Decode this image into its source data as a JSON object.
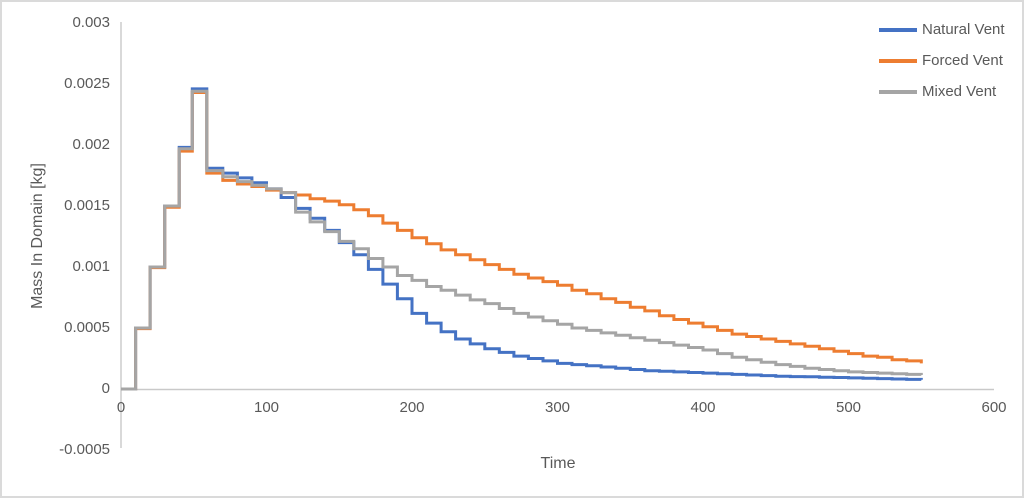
{
  "chart_data": {
    "type": "line",
    "line_style": "step-after",
    "title": "",
    "xlabel": "Time",
    "ylabel": "Mass In Domain [kg]",
    "xlim": [
      0,
      600
    ],
    "ylim": [
      -0.0005,
      0.003
    ],
    "grid": false,
    "legend_position": "top-right",
    "xticks": [
      {
        "v": 0,
        "label": "0"
      },
      {
        "v": 100,
        "label": "100"
      },
      {
        "v": 200,
        "label": "200"
      },
      {
        "v": 300,
        "label": "300"
      },
      {
        "v": 400,
        "label": "400"
      },
      {
        "v": 500,
        "label": "500"
      },
      {
        "v": 600,
        "label": "600"
      }
    ],
    "yticks": [
      {
        "v": -0.0005,
        "label": "-0.0005"
      },
      {
        "v": 0,
        "label": "0"
      },
      {
        "v": 0.0005,
        "label": "0.0005"
      },
      {
        "v": 0.001,
        "label": "0.001"
      },
      {
        "v": 0.0015,
        "label": "0.0015"
      },
      {
        "v": 0.002,
        "label": "0.002"
      },
      {
        "v": 0.0025,
        "label": "0.0025"
      },
      {
        "v": 0.003,
        "label": "0.003"
      }
    ],
    "series": [
      {
        "name": "Natural Vent",
        "color": "#4472C4",
        "points": [
          [
            0,
            0
          ],
          [
            10,
            0.0005
          ],
          [
            20,
            0.001
          ],
          [
            30,
            0.0015
          ],
          [
            40,
            0.00198
          ],
          [
            49,
            0.00246
          ],
          [
            59,
            0.00181
          ],
          [
            70,
            0.00177
          ],
          [
            80,
            0.00173
          ],
          [
            90,
            0.00169
          ],
          [
            100,
            0.00164
          ],
          [
            110,
            0.00157
          ],
          [
            120,
            0.00148
          ],
          [
            130,
            0.0014
          ],
          [
            140,
            0.0013
          ],
          [
            150,
            0.0012
          ],
          [
            160,
            0.0011
          ],
          [
            170,
            0.00098
          ],
          [
            180,
            0.00086
          ],
          [
            190,
            0.00074
          ],
          [
            200,
            0.00062
          ],
          [
            210,
            0.00054
          ],
          [
            220,
            0.00047
          ],
          [
            230,
            0.00041
          ],
          [
            240,
            0.00037
          ],
          [
            250,
            0.00033
          ],
          [
            260,
            0.0003
          ],
          [
            270,
            0.00027
          ],
          [
            280,
            0.00025
          ],
          [
            290,
            0.00023
          ],
          [
            300,
            0.00021
          ],
          [
            310,
            0.0002
          ],
          [
            320,
            0.00019
          ],
          [
            330,
            0.00018
          ],
          [
            340,
            0.00017
          ],
          [
            350,
            0.00016
          ],
          [
            360,
            0.00015
          ],
          [
            370,
            0.000145
          ],
          [
            380,
            0.00014
          ],
          [
            390,
            0.000135
          ],
          [
            400,
            0.00013
          ],
          [
            410,
            0.000125
          ],
          [
            420,
            0.00012
          ],
          [
            430,
            0.000115
          ],
          [
            440,
            0.00011
          ],
          [
            450,
            0.000105
          ],
          [
            460,
            0.000102
          ],
          [
            470,
            0.0001
          ],
          [
            480,
            9.7e-05
          ],
          [
            490,
            9.4e-05
          ],
          [
            500,
            9.1e-05
          ],
          [
            510,
            8.8e-05
          ],
          [
            520,
            8.5e-05
          ],
          [
            530,
            8.2e-05
          ],
          [
            540,
            7.9e-05
          ],
          [
            550,
            7.6e-05
          ]
        ]
      },
      {
        "name": "Forced Vent",
        "color": "#ED7D31",
        "points": [
          [
            0,
            0
          ],
          [
            10,
            0.000495
          ],
          [
            20,
            0.000995
          ],
          [
            30,
            0.00149
          ],
          [
            40,
            0.00195
          ],
          [
            49,
            0.00243
          ],
          [
            59,
            0.00177
          ],
          [
            70,
            0.00171
          ],
          [
            80,
            0.00168
          ],
          [
            90,
            0.00166
          ],
          [
            100,
            0.00163
          ],
          [
            110,
            0.00161
          ],
          [
            120,
            0.00159
          ],
          [
            130,
            0.00156
          ],
          [
            140,
            0.00154
          ],
          [
            150,
            0.00151
          ],
          [
            160,
            0.00147
          ],
          [
            170,
            0.00142
          ],
          [
            180,
            0.00136
          ],
          [
            190,
            0.0013
          ],
          [
            200,
            0.00124
          ],
          [
            210,
            0.00119
          ],
          [
            220,
            0.00114
          ],
          [
            230,
            0.0011
          ],
          [
            240,
            0.00106
          ],
          [
            250,
            0.00102
          ],
          [
            260,
            0.00098
          ],
          [
            270,
            0.00094
          ],
          [
            280,
            0.00091
          ],
          [
            290,
            0.00088
          ],
          [
            300,
            0.00085
          ],
          [
            310,
            0.00081
          ],
          [
            320,
            0.00078
          ],
          [
            330,
            0.00074
          ],
          [
            340,
            0.00071
          ],
          [
            350,
            0.00067
          ],
          [
            360,
            0.00064
          ],
          [
            370,
            0.0006
          ],
          [
            380,
            0.00057
          ],
          [
            390,
            0.00054
          ],
          [
            400,
            0.00051
          ],
          [
            410,
            0.00048
          ],
          [
            420,
            0.00045
          ],
          [
            430,
            0.00043
          ],
          [
            440,
            0.00041
          ],
          [
            450,
            0.00039
          ],
          [
            460,
            0.00037
          ],
          [
            470,
            0.00035
          ],
          [
            480,
            0.00033
          ],
          [
            490,
            0.00031
          ],
          [
            500,
            0.00029
          ],
          [
            510,
            0.00027
          ],
          [
            520,
            0.00026
          ],
          [
            530,
            0.00024
          ],
          [
            540,
            0.00023
          ],
          [
            550,
            0.00021
          ]
        ]
      },
      {
        "name": "Mixed Vent",
        "color": "#A5A5A5",
        "points": [
          [
            0,
            0
          ],
          [
            10,
            0.0005
          ],
          [
            20,
            0.001
          ],
          [
            30,
            0.0015
          ],
          [
            40,
            0.00197
          ],
          [
            49,
            0.00244
          ],
          [
            59,
            0.00179
          ],
          [
            70,
            0.00174
          ],
          [
            80,
            0.0017
          ],
          [
            90,
            0.00167
          ],
          [
            100,
            0.00164
          ],
          [
            110,
            0.00161
          ],
          [
            120,
            0.00145
          ],
          [
            130,
            0.00137
          ],
          [
            140,
            0.00129
          ],
          [
            150,
            0.00121
          ],
          [
            160,
            0.00115
          ],
          [
            170,
            0.00107
          ],
          [
            180,
            0.001
          ],
          [
            190,
            0.00093
          ],
          [
            200,
            0.00089
          ],
          [
            210,
            0.00084
          ],
          [
            220,
            0.00081
          ],
          [
            230,
            0.00077
          ],
          [
            240,
            0.00073
          ],
          [
            250,
            0.0007
          ],
          [
            260,
            0.00066
          ],
          [
            270,
            0.00062
          ],
          [
            280,
            0.00059
          ],
          [
            290,
            0.00056
          ],
          [
            300,
            0.00053
          ],
          [
            310,
            0.0005
          ],
          [
            320,
            0.00048
          ],
          [
            330,
            0.00046
          ],
          [
            340,
            0.00044
          ],
          [
            350,
            0.00042
          ],
          [
            360,
            0.0004
          ],
          [
            370,
            0.00038
          ],
          [
            380,
            0.00036
          ],
          [
            390,
            0.00034
          ],
          [
            400,
            0.00032
          ],
          [
            410,
            0.00029
          ],
          [
            420,
            0.00026
          ],
          [
            430,
            0.00024
          ],
          [
            440,
            0.00022
          ],
          [
            450,
            0.0002
          ],
          [
            460,
            0.000185
          ],
          [
            470,
            0.00017
          ],
          [
            480,
            0.00016
          ],
          [
            490,
            0.00015
          ],
          [
            500,
            0.00014
          ],
          [
            510,
            0.000135
          ],
          [
            520,
            0.00013
          ],
          [
            530,
            0.000125
          ],
          [
            540,
            0.00012
          ],
          [
            550,
            0.000115
          ]
        ]
      }
    ],
    "colors": {
      "axis_line": "#C9C9C9",
      "tick_text": "#595959",
      "figure_border": "#DADADA",
      "background": "#FFFFFF"
    }
  }
}
